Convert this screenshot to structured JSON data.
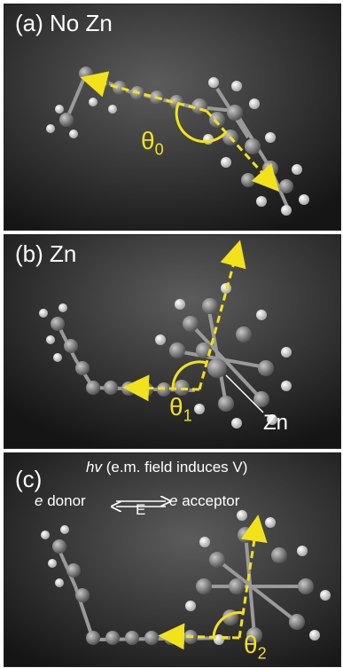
{
  "panels": [
    {
      "label": "(a) No Zn",
      "angle": {
        "symbol": "θ",
        "sub": "0"
      }
    },
    {
      "label": "(b) Zn",
      "angle": {
        "symbol": "θ",
        "sub": "1"
      },
      "atom_label": "Zn"
    },
    {
      "label": "(c)",
      "angle": {
        "symbol": "θ",
        "sub": "2"
      },
      "annotation": {
        "hv": "hv",
        "hv_rest": "(e.m. field induces V)",
        "donor_e": "e",
        "donor": "donor",
        "field": "E",
        "acceptor_e": "e",
        "acceptor": "acceptor"
      }
    }
  ],
  "colors": {
    "background_dark": "#1a1a1a",
    "background_light": "#5a5a5a",
    "arrow": "#f2e21a",
    "atom_carbon": "#8a8a8a",
    "atom_hydrogen": "#e8e8e8",
    "text": "#ffffff"
  }
}
